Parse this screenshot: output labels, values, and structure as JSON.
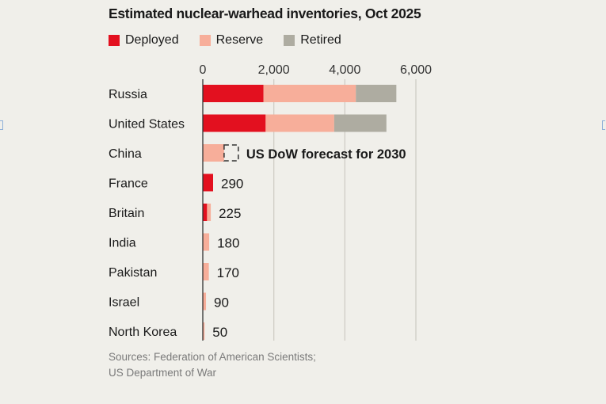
{
  "chart_data": {
    "type": "bar",
    "orientation": "horizontal",
    "stacked": true,
    "title": "Estimated nuclear-warhead inventories, Oct 2025",
    "categories": [
      "Russia",
      "United States",
      "China",
      "France",
      "Britain",
      "India",
      "Pakistan",
      "Israel",
      "North Korea"
    ],
    "series": [
      {
        "name": "Deployed",
        "color": "#e3101f",
        "values": [
          1710,
          1770,
          0,
          290,
          120,
          0,
          0,
          0,
          0
        ]
      },
      {
        "name": "Reserve",
        "color": "#f7ae9a",
        "values": [
          2600,
          1930,
          600,
          0,
          105,
          180,
          170,
          90,
          50
        ]
      },
      {
        "name": "Retired",
        "color": "#aeaca1",
        "values": [
          1140,
          1470,
          0,
          0,
          0,
          0,
          0,
          0,
          0
        ]
      }
    ],
    "data_labels": {
      "France": "290",
      "Britain": "225",
      "India": "180",
      "Pakistan": "170",
      "Israel": "90",
      "North Korea": "50"
    },
    "annotation": {
      "category": "China",
      "value": 1000,
      "text": "US DoW forecast for 2030"
    },
    "xticks": [
      "0",
      "2,000",
      "4,000",
      "6,000"
    ],
    "xtick_values": [
      0,
      2000,
      4000,
      6000
    ],
    "xlim": [
      0,
      6000
    ],
    "grid": true,
    "legend_position": "top-left"
  },
  "sources": [
    "Sources: Federation of American Scientists;",
    "US Department of War"
  ]
}
